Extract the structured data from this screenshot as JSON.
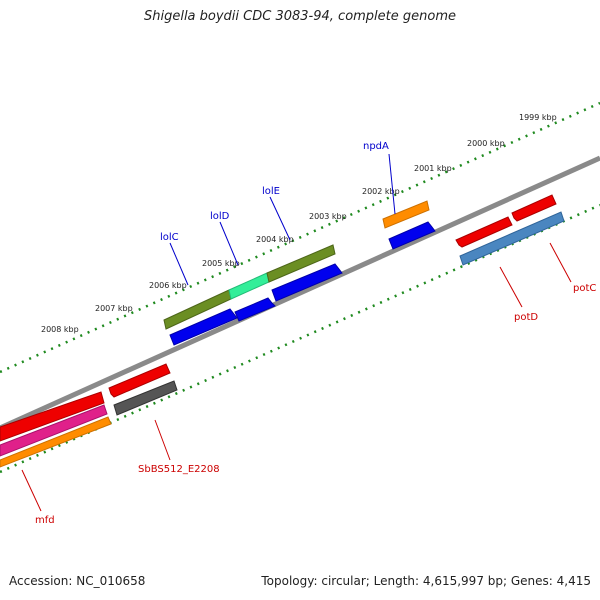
{
  "title": "Shigella boydii CDC 3083-94, complete genome",
  "footer": {
    "accession": "Accession: NC_010658",
    "summary": "Topology: circular; Length: 4,615,997 bp; Genes: 4,415"
  },
  "ticks": [
    "1999 kbp",
    "2000 kbp",
    "2001 kbp",
    "2002 kbp",
    "2003 kbp",
    "2004 kbp",
    "2005 kbp",
    "2006 kbp",
    "2007 kbp",
    "2008 kbp"
  ],
  "genes": [
    {
      "name": "npdA",
      "color": "#0000cc"
    },
    {
      "name": "lolE",
      "color": "#0000cc"
    },
    {
      "name": "lolD",
      "color": "#0000cc"
    },
    {
      "name": "lolC",
      "color": "#0000cc"
    },
    {
      "name": "potC",
      "color": "#cc0000"
    },
    {
      "name": "potD",
      "color": "#cc0000"
    },
    {
      "name": "SbBS512_E2208",
      "color": "#cc0000"
    },
    {
      "name": "mfd",
      "color": "#cc0000"
    }
  ],
  "colors": {
    "backbone": "#8a8a8a",
    "tick_dots": "#1f8a1f",
    "forward_cds": "#0000ee",
    "reverse_cds": "#ee0000",
    "orange": "#ff8c00",
    "olive": "#6b8e23",
    "spring_green": "#33ee99",
    "steel_blue": "#4a86c0",
    "gray": "#555555",
    "magenta": "#e0208a"
  }
}
